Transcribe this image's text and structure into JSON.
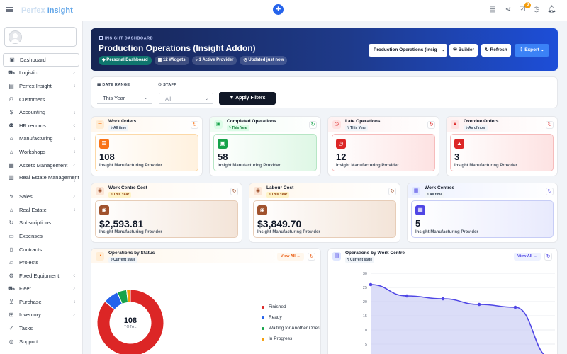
{
  "app": {
    "logo_part1": "Perfex",
    "logo_part2": "Insight",
    "notification_count": "3"
  },
  "sidebar": {
    "items": [
      {
        "label": "Dashboard",
        "icon": "dashboard-icon",
        "glyph": "▣",
        "chevron": false,
        "active": true
      },
      {
        "label": "Logistic",
        "icon": "truck-icon",
        "glyph": "⛟",
        "chevron": true
      },
      {
        "label": "Perfex Insight",
        "icon": "chart-icon",
        "glyph": "▤",
        "chevron": true
      },
      {
        "label": "Customers",
        "icon": "user-icon",
        "glyph": "⚇",
        "chevron": false
      },
      {
        "label": "Accounting",
        "icon": "dollar-icon",
        "glyph": "$",
        "chevron": true
      },
      {
        "label": "HR records",
        "icon": "people-icon",
        "glyph": "⚉",
        "chevron": true
      },
      {
        "label": "Manufacturing",
        "icon": "factory-icon",
        "glyph": "⌂",
        "chevron": true
      },
      {
        "label": "Workshops",
        "icon": "workshop-icon",
        "glyph": "⌂",
        "chevron": true
      },
      {
        "label": "Assets Management",
        "icon": "boxes-icon",
        "glyph": "▦",
        "chevron": true
      },
      {
        "label": "Real Estate Management",
        "icon": "building-icon",
        "glyph": "▥",
        "chevron": true,
        "tall": true
      },
      {
        "label": "Sales",
        "icon": "bolt-icon",
        "glyph": "ϟ",
        "chevron": true
      },
      {
        "label": "Real Estate",
        "icon": "home-icon",
        "glyph": "⌂",
        "chevron": true
      },
      {
        "label": "Subscriptions",
        "icon": "sync-icon",
        "glyph": "↻",
        "chevron": false
      },
      {
        "label": "Expenses",
        "icon": "receipt-icon",
        "glyph": "▭",
        "chevron": false
      },
      {
        "label": "Contracts",
        "icon": "contract-icon",
        "glyph": "▯",
        "chevron": false
      },
      {
        "label": "Projects",
        "icon": "projects-icon",
        "glyph": "▱",
        "chevron": false
      },
      {
        "label": "Fixed Equipment",
        "icon": "gear-icon",
        "glyph": "⚙",
        "chevron": true
      },
      {
        "label": "Fleet",
        "icon": "truck-icon",
        "glyph": "⛟",
        "chevron": true
      },
      {
        "label": "Purchase",
        "icon": "cart-icon",
        "glyph": "⊻",
        "chevron": true
      },
      {
        "label": "Inventory",
        "icon": "inventory-icon",
        "glyph": "⊞",
        "chevron": true
      },
      {
        "label": "Tasks",
        "icon": "check-circle-icon",
        "glyph": "✓",
        "chevron": false
      },
      {
        "label": "Support",
        "icon": "support-icon",
        "glyph": "◎",
        "chevron": false
      }
    ]
  },
  "hero": {
    "kicker": "INSIGHT DASHBOARD",
    "title": "Production Operations (Insight Addon)",
    "chips": [
      "Personal Dashboard",
      "12 Widgets",
      "1 Active Provider",
      "Updated just now"
    ],
    "select_value": "Production Operations (Insig",
    "builder_label": "Builder",
    "refresh_label": "Refresh",
    "export_label": "Export"
  },
  "filters": {
    "date_label": "DATE RANGE",
    "date_value": "This Year",
    "staff_label": "STAFF",
    "staff_placeholder": "All",
    "apply_label": "Apply Filters"
  },
  "kpis": [
    {
      "title": "Work Orders",
      "badge": "All time",
      "value": "108",
      "provider": "Insight Manufacturing Provider",
      "theme": "orange",
      "icon": "list-icon",
      "glyph": "☰"
    },
    {
      "title": "Completed Operations",
      "badge": "This Year",
      "value": "58",
      "provider": "Insight Manufacturing Provider",
      "theme": "green",
      "icon": "clipboard-icon",
      "glyph": "▣"
    },
    {
      "title": "Late Operations",
      "badge": "This Year",
      "value": "12",
      "provider": "Insight Manufacturing Provider",
      "theme": "red",
      "icon": "clock-icon",
      "glyph": "◷"
    },
    {
      "title": "Overdue Orders",
      "badge": "As of now",
      "value": "3",
      "provider": "Insight Manufacturing Provider",
      "theme": "red",
      "icon": "warning-icon",
      "glyph": "▲"
    },
    {
      "title": "Work Centre Cost",
      "badge": "This Year",
      "value": "$2,593.81",
      "provider": "Insight Manufacturing Provider",
      "theme": "brown",
      "icon": "coins-icon",
      "glyph": "◉"
    },
    {
      "title": "Labour Cost",
      "badge": "This Year",
      "value": "$3,849.70",
      "provider": "Insight Manufacturing Provider",
      "theme": "brown",
      "icon": "labour-icon",
      "glyph": "◉"
    },
    {
      "title": "Work Centres",
      "badge": "All time",
      "value": "5",
      "provider": "Insight Manufacturing Provider",
      "theme": "indigo",
      "icon": "factory-icon",
      "glyph": "▦"
    }
  ],
  "status_card": {
    "title": "Operations by Status",
    "badge": "Current state",
    "view_all": "View All →",
    "total_value": "108",
    "total_label": "TOTAL",
    "rows": [
      {
        "name": "Finished",
        "count": "93",
        "pct": "86%",
        "value": 93,
        "color": "#dc2626"
      },
      {
        "name": "Ready",
        "count": "8",
        "pct": "7%",
        "value": 8,
        "color": "#2563eb"
      },
      {
        "name": "Waiting for Another Operation",
        "count": "5",
        "pct": "5%",
        "value": 5,
        "color": "#16a34a"
      },
      {
        "name": "In Progress",
        "count": "2",
        "pct": "2%",
        "value": 2,
        "color": "#f59e0b"
      }
    ]
  },
  "chart_data": {
    "type": "area",
    "title": "Operations by Work Centre",
    "badge": "Current state",
    "view_all": "View All →",
    "yticks": [
      "30",
      "25",
      "20",
      "15",
      "10",
      "5"
    ],
    "ylim": [
      0,
      30
    ],
    "series": [
      {
        "values": [
          26,
          22,
          21,
          19,
          18,
          0
        ]
      }
    ],
    "color": "#4f46e5"
  }
}
